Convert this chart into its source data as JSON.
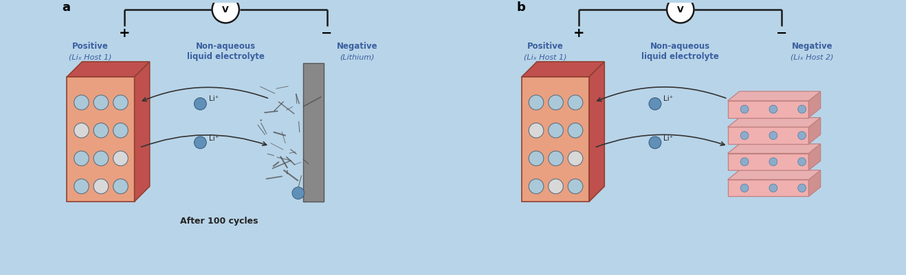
{
  "bg_color": "#b8d4e8",
  "panel_a_label": "a",
  "panel_b_label": "b",
  "positive_label": "Positive",
  "positive_sub": "(Liₓ Host 1)",
  "negative_a_label": "Negative",
  "negative_a_sub": "(Lithium)",
  "negative_b_label": "Negative",
  "negative_b_sub": "(Liₓ Host 2)",
  "electrolyte_label": "Non-aqueous\nliquid electrolyte",
  "after_label": "After 100 cycles",
  "minus_sign": "−",
  "text_color_blue": "#3a5fa0",
  "text_color_dark": "#222222",
  "cube_face_color": "#e8a080",
  "cube_top_color": "#c0504d",
  "cube_side_color": "#c0504d",
  "cube_circle_color": "#aac8d8",
  "layers_color": "#f0b0b0",
  "layers_edge": "#c08080",
  "v_circle_color": "#ffffff",
  "wire_color": "#1a1a1a",
  "arrow_color": "#333333",
  "li_dot_color": "#6090b8"
}
